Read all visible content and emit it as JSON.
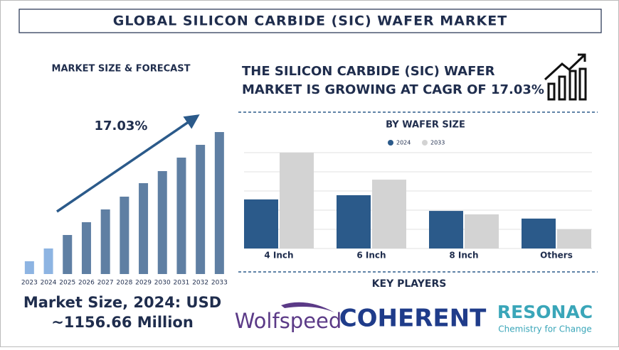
{
  "header": {
    "title": "GLOBAL SILICON CARBIDE (SIC) WAFER MARKET"
  },
  "forecast": {
    "heading": "MARKET SIZE & FORECAST",
    "market_size": [
      "Market Size, 2024: USD",
      "~1156.66 Million"
    ]
  },
  "headline": [
    "THE SILICON CARBIDE (SIC) WAFER",
    "MARKET IS GROWING AT CAGR OF 17.03%"
  ],
  "chart_data": [
    {
      "type": "bar",
      "annotation": "17.03%",
      "categories": [
        "2023",
        "2024",
        "2025",
        "2026",
        "2027",
        "2028",
        "2029",
        "2030",
        "2031",
        "2032",
        "2033"
      ],
      "values": [
        18,
        36,
        55,
        73,
        91,
        109,
        128,
        145,
        164,
        182,
        200
      ],
      "colors": [
        "#8db4e2",
        "#8db4e2",
        "#5f7fa3",
        "#5f7fa3",
        "#5f7fa3",
        "#5f7fa3",
        "#5f7fa3",
        "#5f7fa3",
        "#5f7fa3",
        "#5f7fa3",
        "#5f7fa3"
      ]
    },
    {
      "type": "grouped_bar",
      "title": "BY WAFER SIZE",
      "categories": [
        "4 Inch",
        "6 Inch",
        "8 Inch",
        "Others"
      ],
      "series": [
        {
          "name": "2024",
          "color": "#2b5a8a",
          "values": [
            2.56,
            2.78,
            1.96,
            1.56
          ]
        },
        {
          "name": "2033",
          "color": "#d3d3d3",
          "values": [
            5.0,
            3.59,
            1.78,
            1.0
          ]
        }
      ],
      "ylim": [
        0,
        5
      ],
      "yticks": [
        0,
        1,
        2,
        3,
        4,
        5
      ],
      "grid": true
    }
  ],
  "key_players": {
    "heading": "KEY PLAYERS",
    "logos": [
      "Wolfspeed",
      "COHERENT",
      "RESONAC"
    ],
    "tagline": "Chemistry for Change"
  }
}
